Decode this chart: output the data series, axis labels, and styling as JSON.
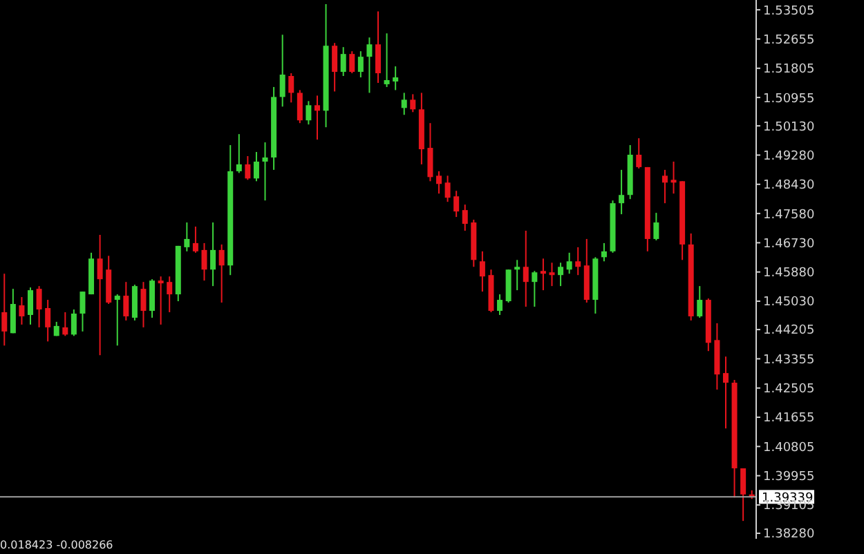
{
  "chart_data": {
    "type": "candlestick",
    "categories": [
      null,
      null,
      null,
      null,
      null,
      null,
      null,
      null,
      null,
      null,
      null,
      null,
      null,
      null,
      null,
      null,
      null,
      null,
      null,
      null,
      null,
      null,
      null,
      null,
      null,
      null,
      null,
      null,
      null,
      null,
      null,
      null,
      null,
      null,
      null,
      null,
      null,
      null,
      null,
      null,
      null,
      null,
      null,
      null,
      null,
      null,
      null,
      null,
      null,
      null,
      null,
      null,
      null,
      null,
      null,
      null,
      null,
      null,
      null,
      null,
      null,
      null,
      null,
      null,
      null,
      null,
      null,
      null,
      null,
      null,
      null,
      null,
      null,
      null,
      null,
      null,
      null,
      null,
      null,
      null,
      null,
      null,
      null,
      null,
      null,
      null,
      null
    ],
    "ohlc": [
      [
        1.4471,
        1.4583,
        1.4374,
        1.4415
      ],
      [
        1.441,
        1.4539,
        1.441,
        1.4495
      ],
      [
        1.4491,
        1.4515,
        1.4435,
        1.4459
      ],
      [
        1.4463,
        1.4543,
        1.4435,
        1.4535
      ],
      [
        1.4539,
        1.4547,
        1.4427,
        1.4479
      ],
      [
        1.4483,
        1.4507,
        1.4386,
        1.4427
      ],
      [
        1.4402,
        1.4443,
        1.4402,
        1.4431
      ],
      [
        1.4427,
        1.4471,
        1.4402,
        1.4406
      ],
      [
        1.4406,
        1.4479,
        1.4402,
        1.4467
      ],
      [
        1.4467,
        1.4531,
        1.4415,
        1.4531
      ],
      [
        1.4523,
        1.4644,
        1.4523,
        1.4627
      ],
      [
        1.4627,
        1.4696,
        1.4346,
        1.4567
      ],
      [
        1.4595,
        1.4635,
        1.4495,
        1.4499
      ],
      [
        1.4507,
        1.4523,
        1.4374,
        1.4519
      ],
      [
        1.4519,
        1.4559,
        1.4447,
        1.4459
      ],
      [
        1.4455,
        1.4551,
        1.4447,
        1.4547
      ],
      [
        1.4539,
        1.4559,
        1.4427,
        1.4475
      ],
      [
        1.4475,
        1.4567,
        1.4455,
        1.4563
      ],
      [
        1.4563,
        1.4575,
        1.4435,
        1.4555
      ],
      [
        1.4559,
        1.4575,
        1.4471,
        1.4523
      ],
      [
        1.4523,
        1.4664,
        1.4503,
        1.4664
      ],
      [
        1.466,
        1.4732,
        1.4648,
        1.4684
      ],
      [
        1.4672,
        1.472,
        1.4644,
        1.4648
      ],
      [
        1.4652,
        1.4672,
        1.4563,
        1.4595
      ],
      [
        1.4595,
        1.4732,
        1.4547,
        1.4652
      ],
      [
        1.4652,
        1.4668,
        1.4499,
        1.4607
      ],
      [
        1.4607,
        1.4957,
        1.4579,
        1.4881
      ],
      [
        1.4881,
        1.4989,
        1.4876,
        1.4901
      ],
      [
        1.4901,
        1.4925,
        1.4856,
        1.486
      ],
      [
        1.486,
        1.4937,
        1.4852,
        1.4909
      ],
      [
        1.4909,
        1.4965,
        1.4796,
        1.4921
      ],
      [
        1.4921,
        1.5126,
        1.4885,
        1.5097
      ],
      [
        1.5097,
        1.5278,
        1.5069,
        1.5162
      ],
      [
        1.5158,
        1.5166,
        1.5081,
        1.5109
      ],
      [
        1.5109,
        1.5117,
        1.5021,
        1.5029
      ],
      [
        1.5029,
        1.5085,
        1.5017,
        1.5073
      ],
      [
        1.5073,
        1.5101,
        1.4973,
        1.5057
      ],
      [
        1.5057,
        1.5367,
        1.5009,
        1.5246
      ],
      [
        1.5246,
        1.5254,
        1.5113,
        1.517
      ],
      [
        1.517,
        1.5242,
        1.5158,
        1.5222
      ],
      [
        1.5222,
        1.523,
        1.5166,
        1.517
      ],
      [
        1.517,
        1.523,
        1.5154,
        1.5214
      ],
      [
        1.5214,
        1.527,
        1.5109,
        1.525
      ],
      [
        1.525,
        1.5346,
        1.5138,
        1.5166
      ],
      [
        1.5134,
        1.5282,
        1.5126,
        1.5146
      ],
      [
        1.5142,
        1.5186,
        1.5117,
        1.5154
      ],
      [
        1.5065,
        1.5109,
        1.5045,
        1.5089
      ],
      [
        1.5089,
        1.5105,
        1.5053,
        1.5061
      ],
      [
        1.5061,
        1.5109,
        1.4901,
        1.4945
      ],
      [
        1.4949,
        1.5021,
        1.4852,
        1.4864
      ],
      [
        1.4868,
        1.4881,
        1.4816,
        1.4844
      ],
      [
        1.4848,
        1.4868,
        1.4792,
        1.4804
      ],
      [
        1.4808,
        1.4824,
        1.4748,
        1.4764
      ],
      [
        1.4768,
        1.4784,
        1.4708,
        1.4728
      ],
      [
        1.4732,
        1.474,
        1.4603,
        1.4623
      ],
      [
        1.4619,
        1.4648,
        1.4531,
        1.4575
      ],
      [
        1.4579,
        1.4595,
        1.4471,
        1.4475
      ],
      [
        1.4475,
        1.4523,
        1.4463,
        1.4507
      ],
      [
        1.4503,
        1.4595,
        1.4499,
        1.4595
      ],
      [
        1.4595,
        1.4623,
        1.4535,
        1.4603
      ],
      [
        1.4603,
        1.4708,
        1.4487,
        1.4559
      ],
      [
        1.4559,
        1.4591,
        1.4487,
        1.4587
      ],
      [
        1.4591,
        1.4627,
        1.4535,
        1.4583
      ],
      [
        1.4587,
        1.4615,
        1.4547,
        1.4579
      ],
      [
        1.4579,
        1.4615,
        1.4547,
        1.4603
      ],
      [
        1.4595,
        1.4644,
        1.4583,
        1.4619
      ],
      [
        1.4619,
        1.466,
        1.4579,
        1.4603
      ],
      [
        1.4607,
        1.4684,
        1.4499,
        1.4507
      ],
      [
        1.4507,
        1.4631,
        1.4467,
        1.4627
      ],
      [
        1.4631,
        1.4672,
        1.4619,
        1.4648
      ],
      [
        1.4648,
        1.4796,
        1.4644,
        1.4788
      ],
      [
        1.4788,
        1.4885,
        1.4756,
        1.4812
      ],
      [
        1.4812,
        1.4957,
        1.48,
        1.4929
      ],
      [
        1.4929,
        1.4977,
        1.4889,
        1.4893
      ],
      [
        1.4893,
        1.4893,
        1.4648,
        1.4684
      ],
      [
        1.4684,
        1.476,
        1.468,
        1.4732
      ],
      [
        1.4868,
        1.4885,
        1.4788,
        1.4848
      ],
      [
        1.4856,
        1.4909,
        1.4816,
        1.4848
      ],
      [
        1.4852,
        1.4852,
        1.4623,
        1.4668
      ],
      [
        1.4668,
        1.47,
        1.4447,
        1.4459
      ],
      [
        1.4459,
        1.4547,
        1.4455,
        1.4507
      ],
      [
        1.4507,
        1.4511,
        1.4358,
        1.4382
      ],
      [
        1.439,
        1.4439,
        1.4246,
        1.429
      ],
      [
        1.4294,
        1.4342,
        1.4133,
        1.4266
      ],
      [
        1.4266,
        1.4274,
        1.3932,
        1.4017
      ],
      [
        1.4017,
        1.4017,
        1.3864,
        1.3941
      ],
      [
        1.3941,
        1.3953,
        1.3928,
        1.3934
      ]
    ],
    "colors": [
      "#e8141c",
      "#3cd43c",
      "#e8141c",
      "#3cd43c",
      "#e8141c",
      "#e8141c",
      "#3cd43c",
      "#e8141c",
      "#3cd43c",
      "#3cd43c",
      "#3cd43c",
      "#e8141c",
      "#e8141c",
      "#3cd43c",
      "#e8141c",
      "#3cd43c",
      "#e8141c",
      "#3cd43c",
      "#e8141c",
      "#e8141c",
      "#3cd43c",
      "#3cd43c",
      "#e8141c",
      "#e8141c",
      "#3cd43c",
      "#e8141c",
      "#3cd43c",
      "#3cd43c",
      "#e8141c",
      "#3cd43c",
      "#3cd43c",
      "#3cd43c",
      "#3cd43c",
      "#e8141c",
      "#e8141c",
      "#3cd43c",
      "#e8141c",
      "#3cd43c",
      "#e8141c",
      "#3cd43c",
      "#e8141c",
      "#3cd43c",
      "#3cd43c",
      "#e8141c",
      "#3cd43c",
      "#3cd43c",
      "#3cd43c",
      "#e8141c",
      "#e8141c",
      "#e8141c",
      "#e8141c",
      "#e8141c",
      "#e8141c",
      "#e8141c",
      "#e8141c",
      "#e8141c",
      "#e8141c",
      "#3cd43c",
      "#3cd43c",
      "#3cd43c",
      "#e8141c",
      "#3cd43c",
      "#e8141c",
      "#e8141c",
      "#3cd43c",
      "#3cd43c",
      "#e8141c",
      "#e8141c",
      "#3cd43c",
      "#3cd43c",
      "#3cd43c",
      "#3cd43c",
      "#3cd43c",
      "#e8141c",
      "#e8141c",
      "#3cd43c",
      "#e8141c",
      "#e8141c",
      "#e8141c",
      "#e8141c",
      "#3cd43c",
      "#e8141c",
      "#e8141c",
      "#e8141c",
      "#e8141c",
      "#e8141c",
      "#e8141c"
    ],
    "ylim": [
      1.3812,
      1.5379
    ],
    "yticks": [
      1.53505,
      1.52655,
      1.51805,
      1.50955,
      {
        "value": 1.5013,
        "label": "1.50130"
      },
      {
        "value": 1.4928,
        "label": "1.49280"
      },
      {
        "value": 1.4843,
        "label": "1.48430"
      },
      {
        "value": 1.4758,
        "label": "1.47580"
      },
      {
        "value": 1.4673,
        "label": "1.46730"
      },
      {
        "value": 1.4588,
        "label": "1.45880"
      },
      {
        "value": 1.4503,
        "label": "1.45030"
      },
      1.44205,
      1.43355,
      1.42505,
      1.41655,
      1.40805,
      1.39955,
      1.39105,
      {
        "value": 1.3828,
        "label": "1.38280"
      }
    ],
    "tick_labels": "y",
    "grid": false,
    "ref_lines": [
      {
        "axis": "y",
        "value": 1.39339,
        "label": "1.39339",
        "color": "#a0a0a0"
      }
    ],
    "annotations": [
      "0.018423 -0.008266"
    ]
  }
}
